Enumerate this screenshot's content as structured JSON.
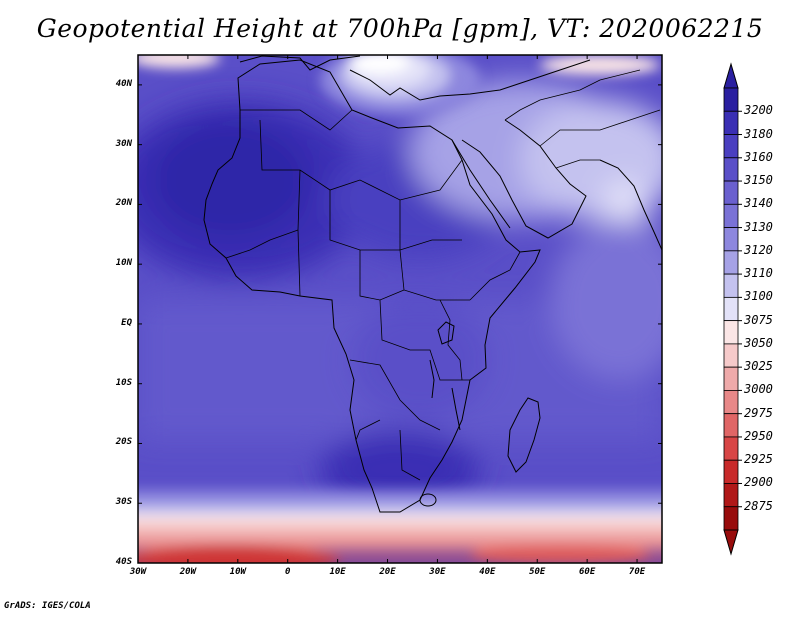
{
  "title": "Geopotential Height at 700hPa [gpm], VT: 2020062215",
  "credit": "GrADS: IGES/COLA",
  "map": {
    "lat_labels": [
      "40N",
      "30N",
      "20N",
      "10N",
      "EQ",
      "10S",
      "20S",
      "30S",
      "40S"
    ],
    "lat_values": [
      40,
      30,
      20,
      10,
      0,
      -10,
      -20,
      -30,
      -40
    ],
    "lon_labels": [
      "30W",
      "20W",
      "10W",
      "0",
      "10E",
      "20E",
      "30E",
      "40E",
      "50E",
      "60E",
      "70E"
    ],
    "lon_values": [
      -30,
      -20,
      -10,
      0,
      10,
      20,
      30,
      40,
      50,
      60,
      70
    ],
    "lat_range": [
      -40,
      45
    ],
    "lon_range": [
      -30,
      75
    ]
  },
  "colorbar": {
    "levels": [
      "3200",
      "3180",
      "3160",
      "3150",
      "3140",
      "3130",
      "3120",
      "3110",
      "3100",
      "3075",
      "3050",
      "3025",
      "3000",
      "2975",
      "2950",
      "2925",
      "2900",
      "2875"
    ],
    "colors": [
      "#2a1fa0",
      "#3a2fb4",
      "#4a3fc0",
      "#5a4fc8",
      "#6a60cf",
      "#7a72d6",
      "#8d87de",
      "#a6a2e6",
      "#c4c2ef",
      "#e3e2f8",
      "#fbe6e6",
      "#f6caca",
      "#efaaaa",
      "#e88888",
      "#e06666",
      "#d84646",
      "#c82a2a",
      "#b01818",
      "#980c0c"
    ]
  }
}
